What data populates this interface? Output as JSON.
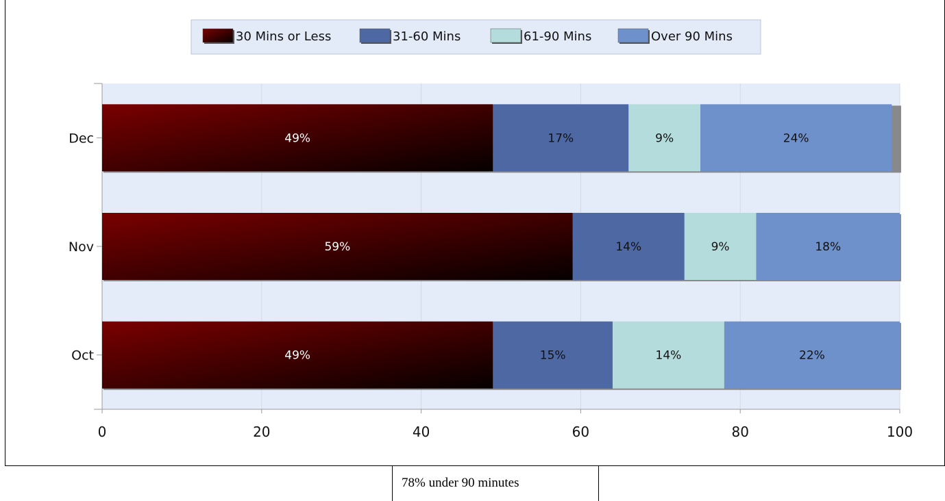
{
  "chart_data": {
    "type": "bar",
    "orientation": "horizontal",
    "stacked": true,
    "categories": [
      "Dec",
      "Nov",
      "Oct"
    ],
    "series": [
      {
        "name": "30 Mins or Less",
        "values": [
          49,
          59,
          49
        ],
        "labels": [
          "49%",
          "59%",
          "49%"
        ],
        "color": "#6b0000"
      },
      {
        "name": "31-60 Mins",
        "values": [
          17,
          14,
          15
        ],
        "labels": [
          "17%",
          "14%",
          "15%"
        ],
        "color": "#4d68a3"
      },
      {
        "name": "61-90 Mins",
        "values": [
          9,
          9,
          14
        ],
        "labels": [
          "9%",
          "9%",
          "14%"
        ],
        "color": "#b4dcdc"
      },
      {
        "name": "Over 90 Mins",
        "values": [
          24,
          18,
          22
        ],
        "labels": [
          "24%",
          "18%",
          "22%"
        ],
        "color": "#6e91cb"
      }
    ],
    "x_ticks": [
      "0",
      "20",
      "40",
      "60",
      "80",
      "100"
    ],
    "xlim": [
      0,
      100
    ],
    "grid": true,
    "legend_position": "top-center",
    "plot_background": "#e5ecf9"
  },
  "footer": {
    "text": "78% under 90 minutes"
  }
}
